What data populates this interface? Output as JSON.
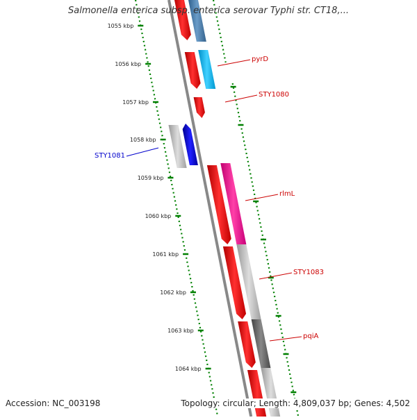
{
  "title": "Salmonella enterica subsp. enterica serovar Typhi str. CT18,...",
  "footer": {
    "accession": "Accession: NC_003198",
    "summary": "Topology: circular; Length: 4,809,037 bp; Genes: 4,502"
  },
  "scale": {
    "unit": "kbp",
    "ticks": [
      "1055 kbp",
      "1056 kbp",
      "1057 kbp",
      "1058 kbp",
      "1059 kbp",
      "1060 kbp",
      "1061 kbp",
      "1062 kbp",
      "1063 kbp",
      "1064 kbp"
    ]
  },
  "labels": [
    {
      "name": "pyrD",
      "color": "#cc0000"
    },
    {
      "name": "STY1080",
      "color": "#cc0000"
    },
    {
      "name": "STY1081",
      "color": "#0000cc"
    },
    {
      "name": "rlmL",
      "color": "#cc0000"
    },
    {
      "name": "STY1083",
      "color": "#cc0000"
    },
    {
      "name": "pqiA",
      "color": "#cc0000"
    }
  ],
  "colors": {
    "cds": "#ff0000",
    "cds_reverse": "#0000ff",
    "gene": "#4682b4",
    "gene_light": "#00bfff",
    "gene_pink": "#ff1493",
    "gene_gray": "#bbbbbb",
    "gene_dark": "#666666",
    "backbone": "#888888",
    "tick": "#008000"
  }
}
